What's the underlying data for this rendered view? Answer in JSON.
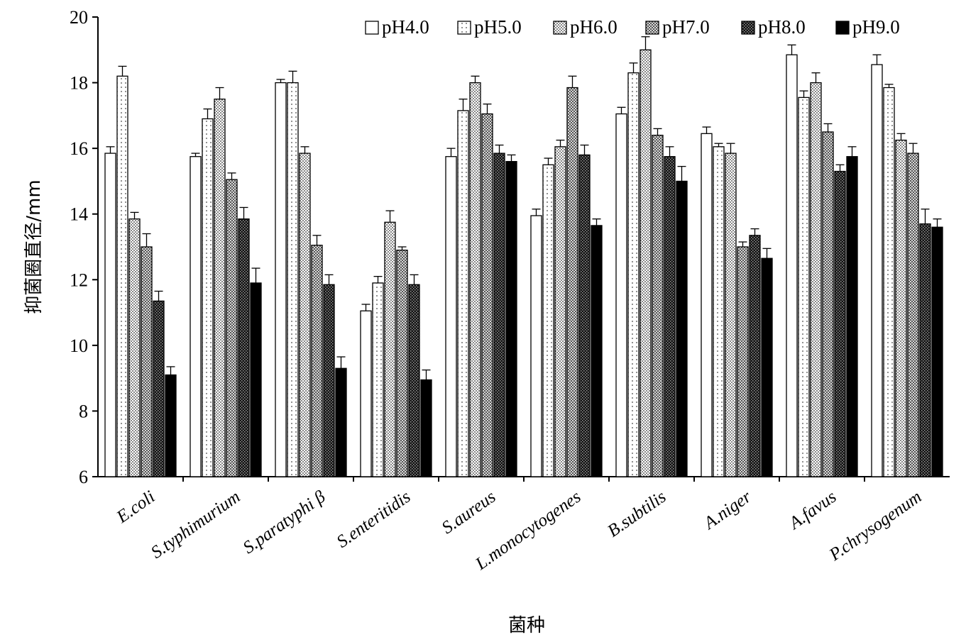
{
  "chart_data": {
    "type": "bar",
    "title": "",
    "xlabel": "菌种",
    "ylabel": "抑菌圈直径/mm",
    "ylim": [
      6,
      20
    ],
    "yticks": [
      6,
      8,
      10,
      12,
      14,
      16,
      18,
      20
    ],
    "grid": false,
    "legend_position": "top-right",
    "error_bars": true,
    "categories": [
      "E.coli",
      "S.typhimurium",
      "S.paratyphi β",
      "S.enteritidis",
      "S.aureus",
      "L.monocytogenes",
      "B.subtilis",
      "A.niger",
      "A.favus",
      "P.chrysogenum"
    ],
    "series": [
      {
        "name": "pH4.0",
        "pattern": "white",
        "values": [
          15.85,
          15.75,
          18.0,
          11.05,
          15.75,
          13.95,
          17.05,
          16.45,
          18.85,
          18.55
        ],
        "errors": [
          0.2,
          0.1,
          0.1,
          0.2,
          0.25,
          0.2,
          0.2,
          0.2,
          0.3,
          0.3
        ]
      },
      {
        "name": "pH5.0",
        "pattern": "sparse-dots",
        "values": [
          18.2,
          16.9,
          18.0,
          11.9,
          17.15,
          15.5,
          18.3,
          16.05,
          17.55,
          17.85
        ],
        "errors": [
          0.3,
          0.3,
          0.35,
          0.2,
          0.35,
          0.2,
          0.3,
          0.1,
          0.2,
          0.1
        ]
      },
      {
        "name": "pH6.0",
        "pattern": "dense-dots",
        "values": [
          13.85,
          17.5,
          15.85,
          13.75,
          18.0,
          16.05,
          19.0,
          15.85,
          18.0,
          16.25
        ],
        "errors": [
          0.2,
          0.35,
          0.2,
          0.35,
          0.2,
          0.2,
          0.4,
          0.3,
          0.3,
          0.2
        ]
      },
      {
        "name": "pH7.0",
        "pattern": "checker",
        "values": [
          13.0,
          15.05,
          13.05,
          12.9,
          17.05,
          17.85,
          16.4,
          13.0,
          16.5,
          15.85
        ],
        "errors": [
          0.4,
          0.2,
          0.3,
          0.1,
          0.3,
          0.35,
          0.2,
          0.15,
          0.25,
          0.3
        ]
      },
      {
        "name": "pH8.0",
        "pattern": "dark-checker",
        "values": [
          11.35,
          13.85,
          11.85,
          11.85,
          15.85,
          15.8,
          15.75,
          13.35,
          15.3,
          13.7
        ],
        "errors": [
          0.3,
          0.35,
          0.3,
          0.3,
          0.25,
          0.3,
          0.3,
          0.2,
          0.2,
          0.45
        ]
      },
      {
        "name": "pH9.0",
        "pattern": "black",
        "values": [
          9.1,
          11.9,
          9.3,
          8.95,
          15.6,
          13.65,
          15.0,
          12.65,
          15.75,
          13.6
        ],
        "errors": [
          0.25,
          0.45,
          0.35,
          0.3,
          0.2,
          0.2,
          0.45,
          0.3,
          0.3,
          0.25
        ]
      }
    ]
  }
}
